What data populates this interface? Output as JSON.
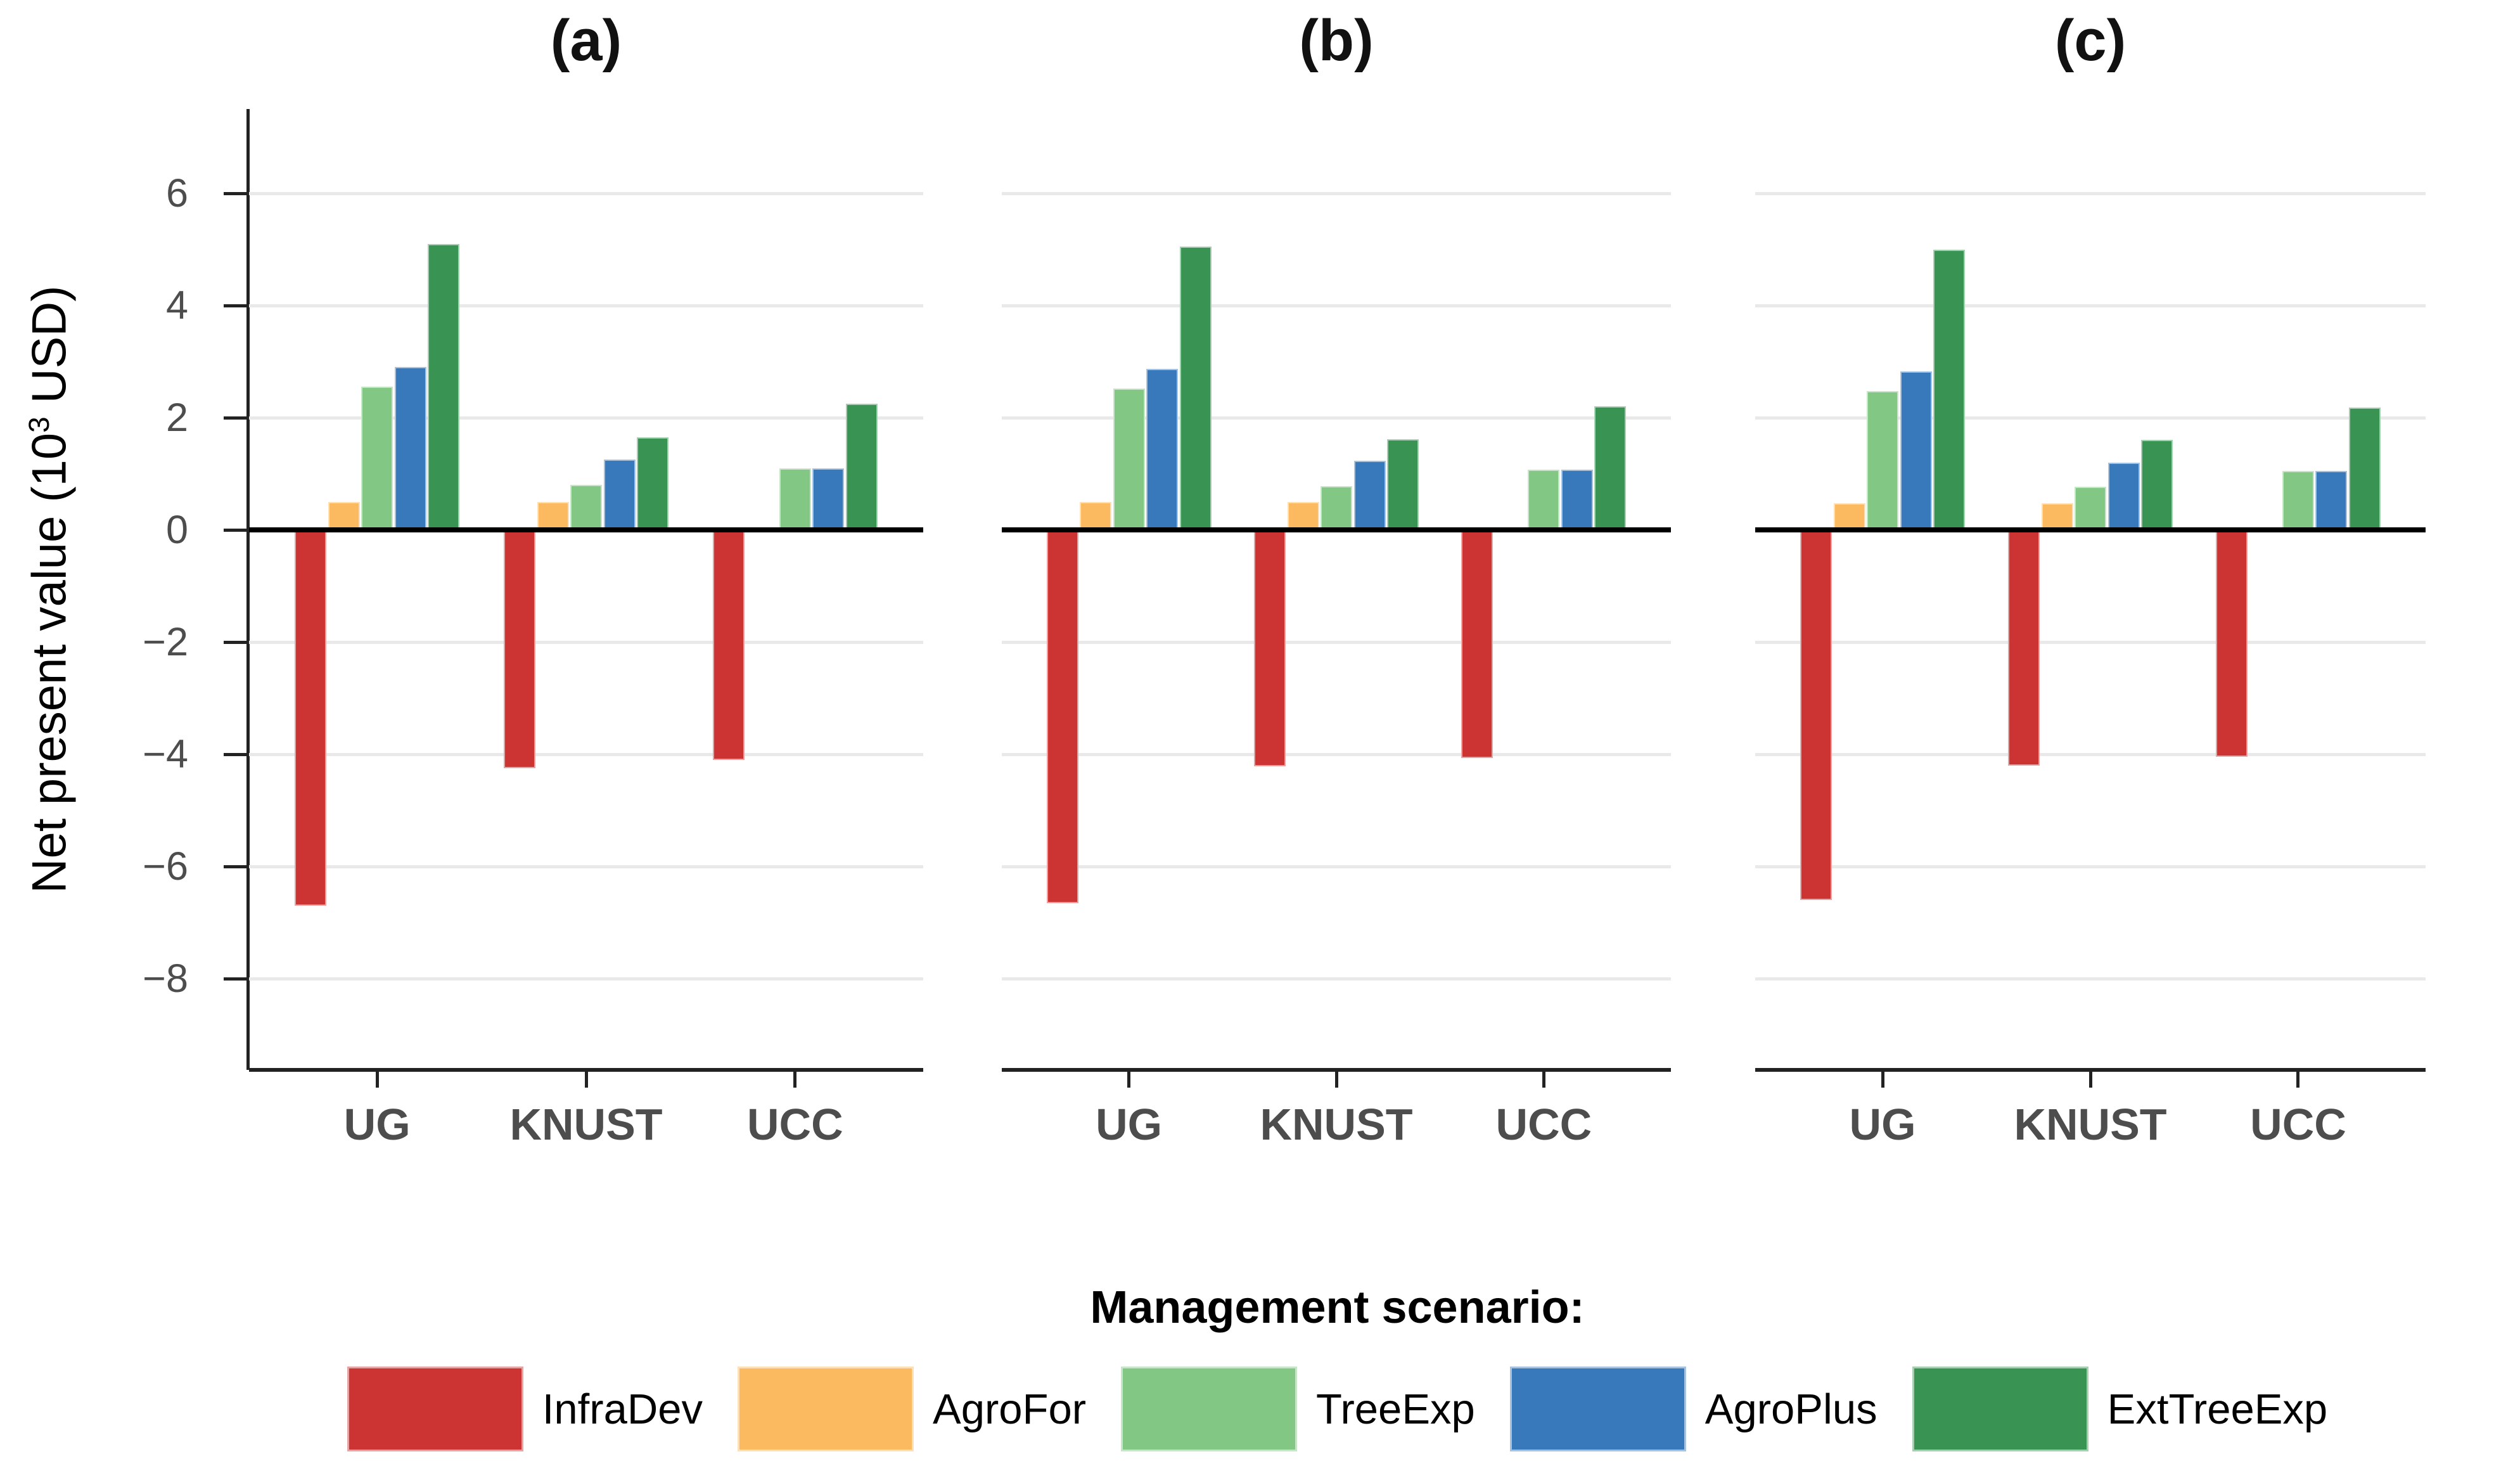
{
  "figure": {
    "y_axis": {
      "label": "Net present value (10³ USD)",
      "label_prefix": "Net present value (10",
      "label_sup": "3",
      "label_suffix": " USD)",
      "ticks": [
        "6",
        "4",
        "2",
        "0",
        "−2",
        "−4",
        "−6",
        "−8"
      ]
    },
    "legend": {
      "title": "Management scenario:"
    }
  },
  "chart_data": {
    "type": "bar",
    "title": "",
    "xlabel": "",
    "ylabel": "Net present value (10^3 USD)",
    "categories": [
      "UG",
      "KNUST",
      "UCC"
    ],
    "yticks": [
      6,
      4,
      2,
      0,
      -2,
      -4,
      -6,
      -8
    ],
    "ylim": [
      -9.65,
      7.5
    ],
    "grid": true,
    "legend_position": "bottom",
    "legend_title": "Management scenario:",
    "series_colors": {
      "InfraDev": "#cc3433",
      "AgroFor": "#fbba60",
      "TreeExp": "#82c783",
      "AgroPlus": "#3879bc",
      "ExtTreeExp": "#399453"
    },
    "facets": [
      {
        "label": "(a)",
        "series": [
          {
            "name": "InfraDev",
            "values": [
              -6.7,
              -4.25,
              -4.1
            ]
          },
          {
            "name": "AgroFor",
            "values": [
              0.5,
              0.5,
              0.05
            ]
          },
          {
            "name": "TreeExp",
            "values": [
              2.55,
              0.8,
              1.1
            ]
          },
          {
            "name": "AgroPlus",
            "values": [
              2.9,
              1.25,
              1.1
            ]
          },
          {
            "name": "ExtTreeExp",
            "values": [
              5.1,
              1.65,
              2.25
            ]
          }
        ]
      },
      {
        "label": "(b)",
        "series": [
          {
            "name": "InfraDev",
            "values": [
              -6.65,
              -4.22,
              -4.07
            ]
          },
          {
            "name": "AgroFor",
            "values": [
              0.5,
              0.5,
              0.05
            ]
          },
          {
            "name": "TreeExp",
            "values": [
              2.52,
              0.78,
              1.07
            ]
          },
          {
            "name": "AgroPlus",
            "values": [
              2.87,
              1.23,
              1.07
            ]
          },
          {
            "name": "ExtTreeExp",
            "values": [
              5.05,
              1.62,
              2.2
            ]
          }
        ]
      },
      {
        "label": "(c)",
        "series": [
          {
            "name": "InfraDev",
            "values": [
              -6.6,
              -4.2,
              -4.05
            ]
          },
          {
            "name": "AgroFor",
            "values": [
              0.48,
              0.48,
              0.05
            ]
          },
          {
            "name": "TreeExp",
            "values": [
              2.48,
              0.77,
              1.05
            ]
          },
          {
            "name": "AgroPlus",
            "values": [
              2.83,
              1.2,
              1.05
            ]
          },
          {
            "name": "ExtTreeExp",
            "values": [
              5.0,
              1.6,
              2.18
            ]
          }
        ]
      }
    ]
  }
}
